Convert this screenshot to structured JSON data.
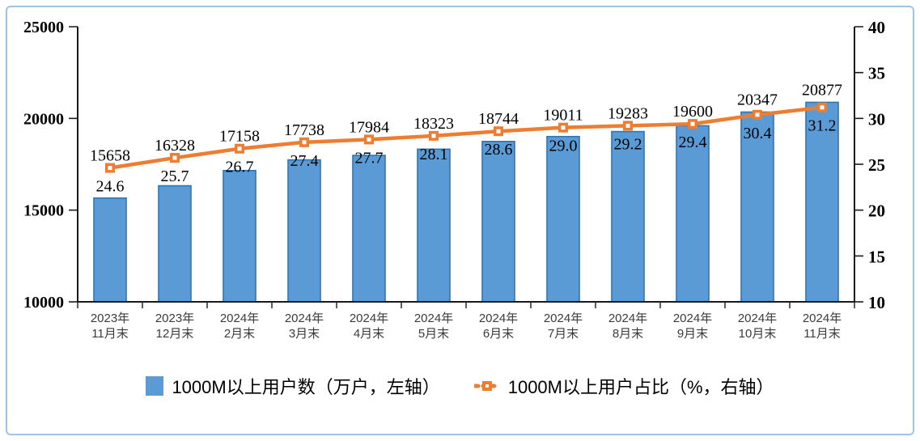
{
  "window": {
    "background": "#ffffff",
    "frame_border_color": "#9DC3E6"
  },
  "chart_data": {
    "type": "bar+line",
    "title": "",
    "categories": [
      [
        "2023年",
        "11月末"
      ],
      [
        "2023年",
        "12月末"
      ],
      [
        "2024年",
        "2月末"
      ],
      [
        "2024年",
        "3月末"
      ],
      [
        "2024年",
        "4月末"
      ],
      [
        "2024年",
        "5月末"
      ],
      [
        "2024年",
        "6月末"
      ],
      [
        "2024年",
        "7月末"
      ],
      [
        "2024年",
        "8月末"
      ],
      [
        "2024年",
        "9月末"
      ],
      [
        "2024年",
        "10月末"
      ],
      [
        "2024年",
        "11月末"
      ]
    ],
    "series": [
      {
        "name": "1000M以上用户数（万户，左轴）",
        "type": "bar",
        "axis": "left",
        "color": "#5B9BD5",
        "border_color": "#2E75B6",
        "values": [
          15658,
          16328,
          17158,
          17738,
          17984,
          18323,
          18744,
          19011,
          19283,
          19600,
          20347,
          20877
        ],
        "value_labels": [
          "15658",
          "16328",
          "17158",
          "17738",
          "17984",
          "18323",
          "18744",
          "19011",
          "19283",
          "19600",
          "20347",
          "20877"
        ]
      },
      {
        "name": "1000M以上用户占比（%，右轴）",
        "type": "line",
        "axis": "right",
        "color": "#ED7D31",
        "marker": "square-open",
        "values": [
          24.6,
          25.7,
          26.7,
          27.4,
          27.7,
          28.1,
          28.6,
          29.0,
          29.2,
          29.4,
          30.4,
          31.2
        ],
        "value_labels": [
          "24.6",
          "25.7",
          "26.7",
          "27.4",
          "27.7",
          "28.1",
          "28.6",
          "29.0",
          "29.2",
          "29.4",
          "30.4",
          "31.2"
        ]
      }
    ],
    "left_axis": {
      "min": 10000,
      "max": 25000,
      "ticks": [
        "10000",
        "15000",
        "20000",
        "25000"
      ]
    },
    "right_axis": {
      "min": 10,
      "max": 40,
      "ticks": [
        "10",
        "15",
        "20",
        "25",
        "30",
        "35",
        "40"
      ]
    },
    "grid": false,
    "legend_position": "bottom",
    "axis_color": "#1a1a1a"
  },
  "legend": {
    "items": [
      {
        "label": "1000M以上用户数（万户，左轴）",
        "swatch": "bar-square",
        "color": "#5B9BD5"
      },
      {
        "label": "1000M以上用户占比（%，右轴）",
        "swatch": "line-marker",
        "color": "#ED7D31"
      }
    ]
  }
}
